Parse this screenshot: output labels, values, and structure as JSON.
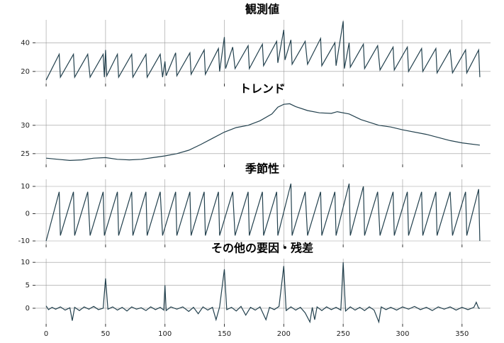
{
  "chart_data": [
    {
      "type": "line",
      "title": "観測値",
      "color": "#22404d",
      "grid": true,
      "xlim": [
        -9,
        374
      ],
      "xticks": [
        0,
        50,
        100,
        150,
        200,
        250,
        300,
        350
      ],
      "ylim": [
        11.5,
        56
      ],
      "yticks": [
        20,
        40
      ],
      "x": [
        0,
        11,
        12,
        23,
        24,
        35,
        37,
        48,
        49,
        50,
        51,
        60,
        61,
        72,
        73,
        84,
        85,
        96,
        98,
        100,
        101,
        109,
        110,
        121,
        122,
        133,
        134,
        145,
        146,
        150,
        151,
        157,
        159,
        170,
        171,
        182,
        183,
        194,
        195,
        200,
        201,
        206,
        207,
        218,
        220,
        231,
        232,
        243,
        244,
        250,
        251,
        255,
        256,
        267,
        268,
        279,
        281,
        292,
        293,
        304,
        305,
        316,
        317,
        328,
        329,
        340,
        342,
        353,
        354,
        364,
        365
      ],
      "values": [
        14,
        32,
        16,
        32,
        16,
        32,
        16,
        32,
        16,
        35,
        17,
        32,
        16,
        32,
        16,
        32,
        16,
        32,
        16,
        27,
        17,
        33,
        17,
        33,
        18,
        35,
        18,
        36,
        20,
        44,
        22,
        37,
        22,
        38,
        22,
        39,
        24,
        41,
        26,
        49,
        28,
        42,
        25,
        41,
        25,
        43,
        24,
        40,
        24,
        55,
        22,
        40,
        23,
        39,
        22,
        38,
        21,
        37,
        21,
        37,
        20,
        36,
        20,
        36,
        19,
        35,
        19,
        35,
        19,
        35,
        16
      ]
    },
    {
      "type": "line",
      "title": "トレンド",
      "color": "#22404d",
      "grid": true,
      "xlim": [
        -9,
        374
      ],
      "xticks": [
        0,
        50,
        100,
        150,
        200,
        250,
        300,
        350
      ],
      "ylim": [
        23.1,
        34.6
      ],
      "yticks": [
        25,
        30
      ],
      "x": [
        0,
        10,
        20,
        30,
        40,
        50,
        60,
        70,
        80,
        90,
        100,
        110,
        120,
        130,
        140,
        150,
        160,
        170,
        180,
        190,
        195,
        200,
        205,
        210,
        220,
        230,
        240,
        245,
        255,
        265,
        280,
        290,
        300,
        320,
        340,
        350,
        365
      ],
      "values": [
        24.2,
        24.0,
        23.8,
        23.9,
        24.2,
        24.3,
        24.0,
        23.9,
        24.0,
        24.3,
        24.6,
        25.0,
        25.6,
        26.6,
        27.7,
        28.8,
        29.6,
        30.0,
        30.8,
        32.0,
        33.2,
        33.7,
        33.8,
        33.3,
        32.6,
        32.2,
        32.1,
        32.4,
        32.0,
        31.0,
        30.0,
        29.7,
        29.2,
        28.4,
        27.3,
        26.9,
        26.5
      ]
    },
    {
      "type": "line",
      "title": "季節性",
      "color": "#22404d",
      "grid": true,
      "xlim": [
        -9,
        374
      ],
      "xticks": [
        0,
        50,
        100,
        150,
        200,
        250,
        300,
        350
      ],
      "ylim": [
        -11.3,
        12.6
      ],
      "yticks": [
        -10,
        0,
        10
      ],
      "x": [
        0,
        11,
        12,
        23,
        24,
        35,
        37,
        48,
        49,
        60,
        61,
        72,
        73,
        84,
        85,
        96,
        98,
        109,
        110,
        121,
        122,
        133,
        134,
        145,
        146,
        157,
        159,
        170,
        171,
        182,
        183,
        194,
        195,
        206,
        207,
        218,
        220,
        231,
        232,
        243,
        244,
        255,
        256,
        267,
        268,
        279,
        281,
        292,
        293,
        304,
        305,
        316,
        317,
        328,
        329,
        340,
        342,
        353,
        354,
        364,
        365
      ],
      "values": [
        -10,
        8,
        -8,
        8,
        -8,
        8,
        -8,
        8,
        -8,
        8,
        -8,
        8,
        -8,
        8,
        -8,
        8,
        -8,
        8,
        -8,
        8,
        -8,
        8,
        -8,
        8,
        -8,
        8,
        -8,
        8,
        -8,
        8,
        -8,
        8,
        -8,
        11,
        -8,
        8,
        -8,
        8,
        -8,
        8,
        -8,
        11,
        -8,
        10,
        -8,
        8,
        -8,
        8,
        -8,
        8,
        -8,
        8,
        -8,
        8,
        -8,
        8,
        -8,
        8,
        -8,
        9,
        -10
      ]
    },
    {
      "type": "line",
      "title": "その他の要因・残差",
      "color": "#22404d",
      "grid": true,
      "xlim": [
        -9,
        374
      ],
      "xticks": [
        0,
        50,
        100,
        150,
        200,
        250,
        300,
        350
      ],
      "ylim": [
        -3.4,
        10.8
      ],
      "yticks": [
        0,
        5,
        10
      ],
      "x": [
        0,
        2,
        5,
        8,
        12,
        16,
        20,
        22,
        24,
        28,
        32,
        36,
        40,
        44,
        48,
        50,
        52,
        56,
        60,
        64,
        68,
        72,
        76,
        80,
        84,
        88,
        92,
        96,
        99,
        100,
        101,
        105,
        110,
        115,
        120,
        124,
        128,
        132,
        136,
        140,
        143,
        146,
        150,
        152,
        156,
        160,
        164,
        168,
        172,
        176,
        180,
        185,
        188,
        192,
        196,
        200,
        202,
        206,
        210,
        214,
        218,
        222,
        224,
        226,
        228,
        232,
        236,
        240,
        244,
        248,
        250,
        252,
        256,
        260,
        264,
        268,
        272,
        276,
        280,
        282,
        286,
        290,
        295,
        300,
        305,
        310,
        315,
        320,
        325,
        330,
        335,
        340,
        345,
        350,
        355,
        360,
        362,
        364,
        365
      ],
      "values": [
        0.5,
        -0.3,
        0.2,
        -0.2,
        0.3,
        -0.4,
        0.1,
        -2.7,
        0.2,
        -0.5,
        0.3,
        -0.2,
        0.4,
        -0.3,
        0,
        6.5,
        -0.2,
        0.3,
        -0.4,
        0.2,
        -0.6,
        0.3,
        -0.2,
        0.1,
        -0.5,
        0.3,
        -0.3,
        0.2,
        -0.4,
        5,
        -0.5,
        0.3,
        -0.2,
        0.3,
        -0.7,
        0.2,
        -1.2,
        0.3,
        -0.4,
        0.2,
        -2.5,
        0.3,
        8.5,
        -0.3,
        0.2,
        -0.6,
        0.4,
        -1.5,
        0.2,
        -0.4,
        0.3,
        -2.5,
        0.2,
        -0.3,
        0.4,
        9.2,
        -0.5,
        0.3,
        -0.4,
        0.2,
        -1.0,
        -3,
        0.2,
        -2.5,
        0.3,
        -0.5,
        0.3,
        -0.3,
        0.2,
        -0.4,
        10,
        -0.6,
        0.3,
        -0.4,
        0.2,
        -0.5,
        0.3,
        -0.4,
        -3,
        0.3,
        -0.3,
        0.2,
        -0.4,
        0.3,
        -0.2,
        0.4,
        -0.3,
        0.2,
        -0.5,
        0.3,
        -0.2,
        0.3,
        -0.4,
        0.2,
        -0.3,
        0.2,
        1.3,
        0,
        0
      ]
    }
  ]
}
